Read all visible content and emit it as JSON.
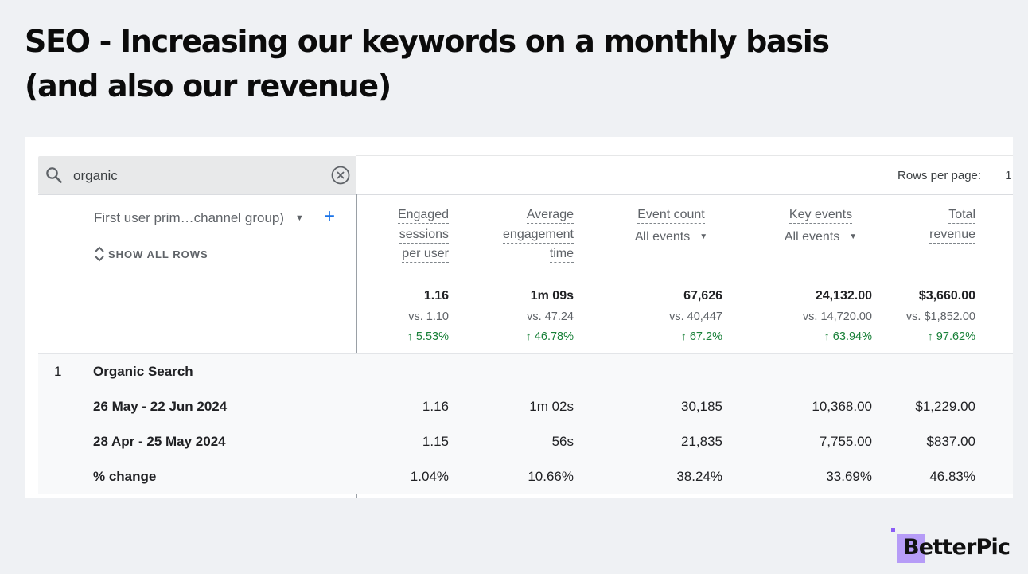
{
  "slide": {
    "title_line1": "SEO - Increasing our keywords on a monthly basis",
    "title_line2": "(and also our revenue)"
  },
  "search": {
    "value": "organic",
    "icon": "search-icon",
    "clear_icon": "close-circle-icon"
  },
  "toolbar": {
    "rows_per_page_label": "Rows per page:",
    "rows_per_page_value": "1"
  },
  "dimension": {
    "label": "First user prim…channel group)",
    "add_label": "+",
    "show_all_label": "SHOW ALL ROWS"
  },
  "columns": [
    {
      "lines": [
        "Engaged",
        "sessions",
        "per user"
      ],
      "sub": ""
    },
    {
      "lines": [
        "Average",
        "engagement",
        "time"
      ],
      "sub": ""
    },
    {
      "lines": [
        "Event count"
      ],
      "sub": "All events"
    },
    {
      "lines": [
        "Key events"
      ],
      "sub": "All events"
    },
    {
      "lines": [
        "Total",
        "revenue"
      ],
      "sub": ""
    }
  ],
  "totals": [
    {
      "value": "1.16",
      "vs": "vs. 1.10",
      "change": "↑ 5.53%"
    },
    {
      "value": "1m 09s",
      "vs": "vs. 47.24",
      "change": "↑ 46.78%"
    },
    {
      "value": "67,626",
      "vs": "vs. 40,447",
      "change": "↑ 67.2%"
    },
    {
      "value": "24,132.00",
      "vs": "vs. 14,720.00",
      "change": "↑ 63.94%"
    },
    {
      "value": "$3,660.00",
      "vs": "vs. $1,852.00",
      "change": "↑ 97.62%"
    }
  ],
  "rows": [
    {
      "index": "1",
      "label": "Organic Search",
      "cells": [
        "",
        "",
        "",
        "",
        ""
      ]
    },
    {
      "index": "",
      "label": "26 May - 22 Jun 2024",
      "cells": [
        "1.16",
        "1m 02s",
        "30,185",
        "10,368.00",
        "$1,229.00"
      ]
    },
    {
      "index": "",
      "label": "28 Apr - 25 May 2024",
      "cells": [
        "1.15",
        "56s",
        "21,835",
        "7,755.00",
        "$837.00"
      ]
    },
    {
      "index": "",
      "label": "% change",
      "cells": [
        "1.04%",
        "10.66%",
        "38.24%",
        "33.69%",
        "46.83%"
      ]
    }
  ],
  "brand": {
    "name": "BetterPic",
    "accent": "#b69cf7"
  },
  "colors": {
    "positive": "#188038",
    "link": "#1a73e8",
    "background": "#eff1f4"
  }
}
